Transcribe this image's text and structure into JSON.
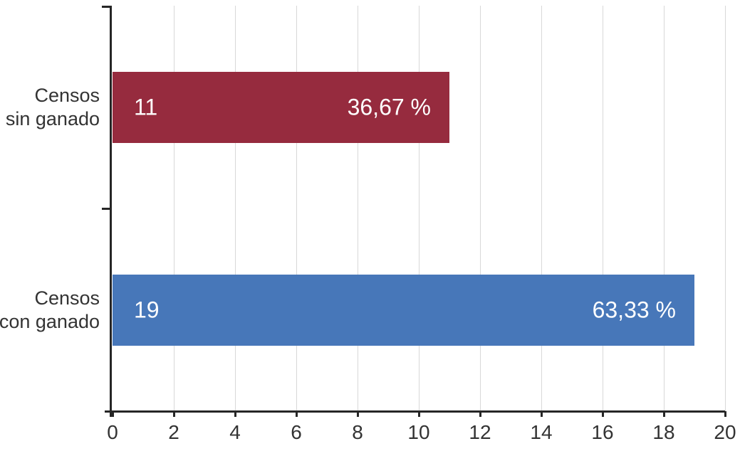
{
  "chart_data": {
    "type": "bar",
    "orientation": "horizontal",
    "categories": [
      "Censos sin ganado",
      "Censos con ganado"
    ],
    "category_lines": [
      [
        "Censos",
        "sin ganado"
      ],
      [
        "Censos",
        "con ganado"
      ]
    ],
    "values": [
      11,
      19
    ],
    "value_labels": [
      "11",
      "19"
    ],
    "percent_labels": [
      "36,67 %",
      "63,33 %"
    ],
    "series_colors": [
      "#962b3e",
      "#4777b9"
    ],
    "xlim": [
      0,
      20
    ],
    "xticks": [
      0,
      2,
      4,
      6,
      8,
      10,
      12,
      14,
      16,
      18,
      20
    ],
    "grid": "vertical",
    "legend": "none",
    "colors": {
      "axis": "#262626",
      "grid": "#d8d8d8",
      "tick_label": "#333333",
      "category_label": "#333333",
      "bar_value_text": "#ffffff",
      "background": "#ffffff"
    }
  }
}
